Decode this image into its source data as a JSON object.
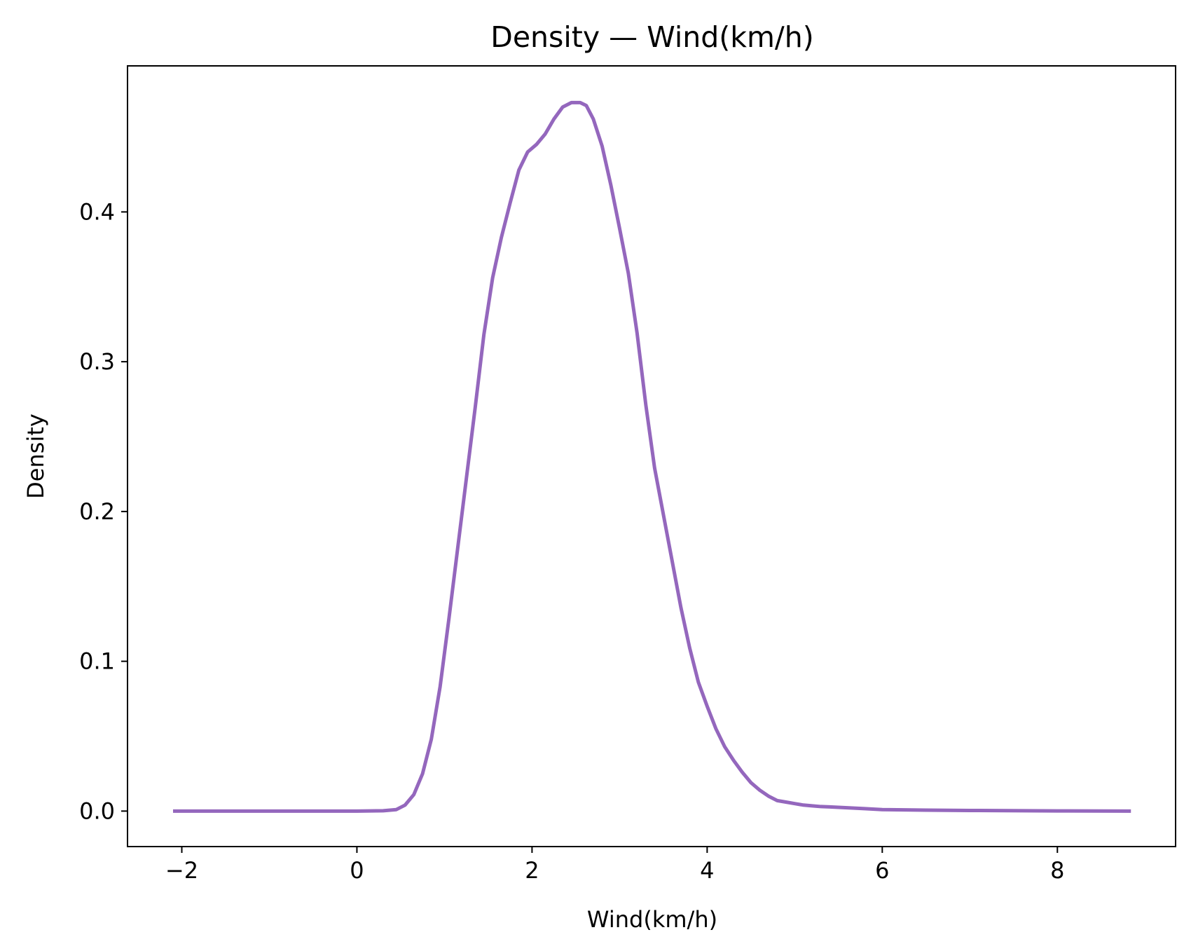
{
  "chart_data": {
    "type": "line",
    "title": "Density — Wind(km/h)",
    "xlabel": "Wind(km/h)",
    "ylabel": "Density",
    "xlim": [
      -2.62,
      9.35
    ],
    "ylim": [
      -0.0237,
      0.4975
    ],
    "x_ticks": [
      {
        "value": -2,
        "label": "−2"
      },
      {
        "value": 0,
        "label": "0"
      },
      {
        "value": 2,
        "label": "2"
      },
      {
        "value": 4,
        "label": "4"
      },
      {
        "value": 6,
        "label": "6"
      },
      {
        "value": 8,
        "label": "8"
      }
    ],
    "y_ticks": [
      {
        "value": 0.0,
        "label": "0.0"
      },
      {
        "value": 0.1,
        "label": "0.1"
      },
      {
        "value": 0.2,
        "label": "0.2"
      },
      {
        "value": 0.3,
        "label": "0.3"
      },
      {
        "value": 0.4,
        "label": "0.4"
      }
    ],
    "grid": false,
    "legend": "none",
    "series": [
      {
        "color": "#9467bd",
        "x": [
          -2.1,
          -1.0,
          0.0,
          0.3,
          0.45,
          0.55,
          0.65,
          0.75,
          0.85,
          0.95,
          1.05,
          1.15,
          1.25,
          1.35,
          1.45,
          1.55,
          1.65,
          1.75,
          1.85,
          1.95,
          2.05,
          2.15,
          2.25,
          2.35,
          2.45,
          2.55,
          2.62,
          2.7,
          2.8,
          2.9,
          3.0,
          3.1,
          3.2,
          3.3,
          3.4,
          3.5,
          3.6,
          3.7,
          3.8,
          3.9,
          4.0,
          4.1,
          4.2,
          4.3,
          4.4,
          4.5,
          4.6,
          4.7,
          4.8,
          4.9,
          5.0,
          5.1,
          5.2,
          5.3,
          5.4,
          5.6,
          5.8,
          6.0,
          6.5,
          7.0,
          8.0,
          8.84
        ],
        "y": [
          0.0,
          0.0,
          0.0,
          0.0002,
          0.001,
          0.004,
          0.011,
          0.025,
          0.048,
          0.083,
          0.128,
          0.175,
          0.222,
          0.269,
          0.318,
          0.356,
          0.383,
          0.406,
          0.428,
          0.44,
          0.445,
          0.452,
          0.462,
          0.47,
          0.473,
          0.473,
          0.471,
          0.462,
          0.444,
          0.418,
          0.389,
          0.359,
          0.319,
          0.271,
          0.229,
          0.198,
          0.167,
          0.136,
          0.109,
          0.086,
          0.07,
          0.055,
          0.043,
          0.034,
          0.026,
          0.019,
          0.014,
          0.01,
          0.007,
          0.006,
          0.005,
          0.004,
          0.0035,
          0.003,
          0.0028,
          0.0022,
          0.0016,
          0.001,
          0.0006,
          0.0004,
          0.0001,
          0.0
        ]
      }
    ]
  }
}
